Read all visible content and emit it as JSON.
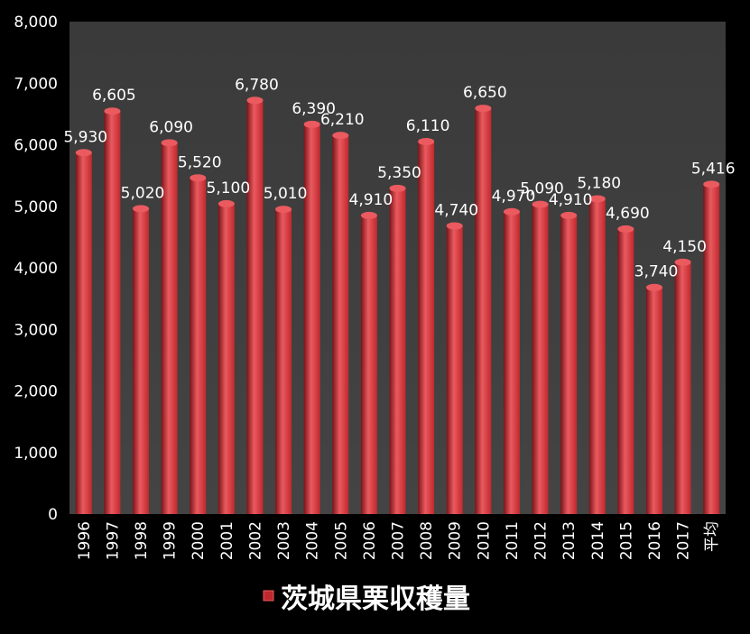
{
  "chart_data": {
    "type": "bar",
    "title": "",
    "xlabel": "",
    "ylabel": "",
    "ylim": [
      0,
      8000
    ],
    "yticks": [
      0,
      1000,
      2000,
      3000,
      4000,
      5000,
      6000,
      7000,
      8000
    ],
    "ytick_labels": [
      "0",
      "1,000",
      "2,000",
      "3,000",
      "4,000",
      "5,000",
      "6,000",
      "7,000",
      "8,000"
    ],
    "categories": [
      "1996",
      "1997",
      "1998",
      "1999",
      "2000",
      "2001",
      "2002",
      "2003",
      "2004",
      "2005",
      "2006",
      "2007",
      "2008",
      "2009",
      "2010",
      "2011",
      "2012",
      "2013",
      "2014",
      "2015",
      "2016",
      "2017",
      "平均"
    ],
    "series": [
      {
        "name": "茨城県栗収穫量",
        "values": [
          5930,
          6605,
          5020,
          6090,
          5520,
          5100,
          6780,
          5010,
          6390,
          6210,
          4910,
          5350,
          6110,
          4740,
          6650,
          4970,
          5090,
          4910,
          5180,
          4690,
          3740,
          4150,
          5416
        ]
      }
    ],
    "data_labels": [
      "5,930",
      "6,605",
      "5,020",
      "6,090",
      "5,520",
      "5,100",
      "6,780",
      "5,010",
      "6,390",
      "6,210",
      "4,910",
      "5,350",
      "6,110",
      "4,740",
      "6,650",
      "4,970",
      "5,090",
      "4,910",
      "5,180",
      "4,690",
      "3,740",
      "4,150",
      "5,416"
    ],
    "grid": false,
    "legend_position": "bottom",
    "colors": {
      "background": "#000000",
      "plot_area": "#3c3c3c",
      "bar": "#c0282d",
      "bar_highlight": "#ea5a5f",
      "bar_shadow": "#7a1418",
      "text": "#ffffff"
    }
  }
}
